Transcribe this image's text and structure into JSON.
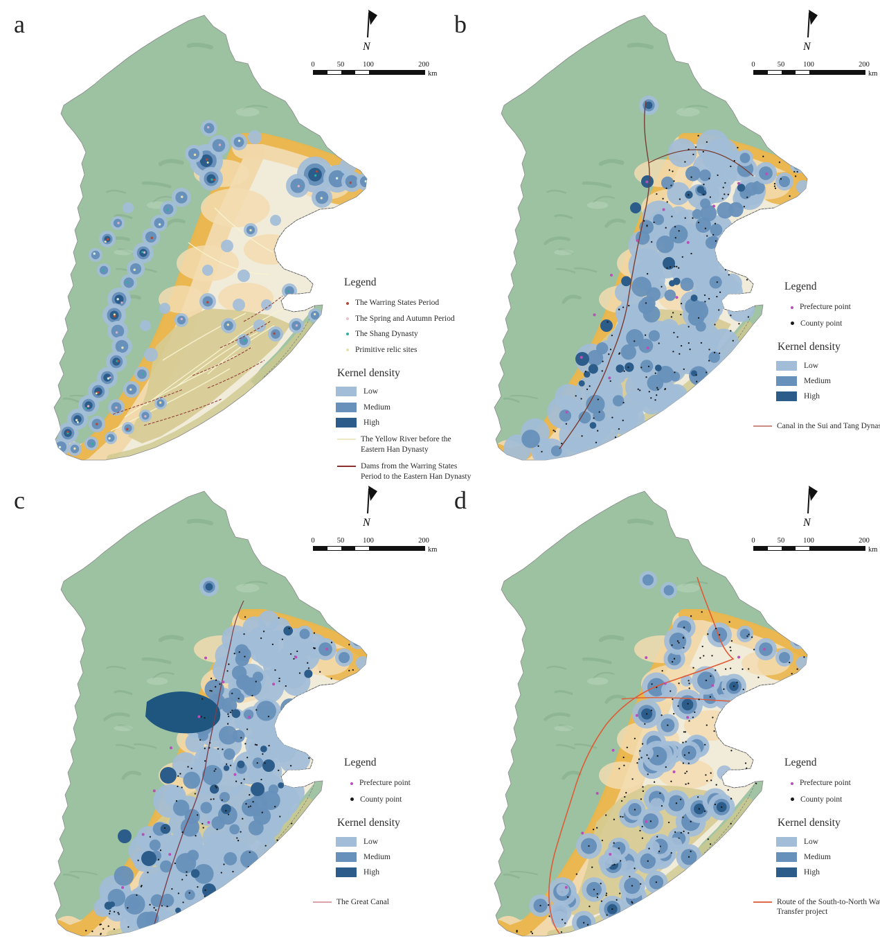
{
  "panels": [
    {
      "label": "a",
      "north_label": "N",
      "scalebar": {
        "labels": [
          "0",
          "50",
          "100",
          "200"
        ],
        "unit": "km"
      },
      "legend": {
        "title": "Legend",
        "point_items": [
          {
            "label": "The Warring States Period",
            "color": "#b0493b"
          },
          {
            "label": "The Spring and Autumn Period",
            "color": "#e7c2ce"
          },
          {
            "label": "The Shang Dynasty",
            "color": "#2fae9e"
          },
          {
            "label": "Primitive relic sites",
            "color": "#eae0ac"
          }
        ],
        "density": {
          "title": "Kernel density",
          "classes": [
            {
              "label": "Low",
              "color": "#a2bdd8"
            },
            {
              "label": "Medium",
              "color": "#6790ba"
            },
            {
              "label": "High",
              "color": "#2b5c8a"
            }
          ]
        },
        "line_items": [
          {
            "label": "The Yellow River before the Eastern Han Dynasty",
            "color": "#efe8c0"
          },
          {
            "label": "Dams from the Warring States Period to the Eastern Han Dynasty",
            "color": "#8a2f2b"
          }
        ]
      }
    },
    {
      "label": "b",
      "north_label": "N",
      "scalebar": {
        "labels": [
          "0",
          "50",
          "100",
          "200"
        ],
        "unit": "km"
      },
      "legend": {
        "title": "Legend",
        "point_items": [
          {
            "label": "Prefecture point",
            "color": "#b94fb9"
          },
          {
            "label": "County point",
            "color": "#1a1a1a"
          }
        ],
        "density": {
          "title": "Kernel density",
          "classes": [
            {
              "label": "Low",
              "color": "#a2bdd8"
            },
            {
              "label": "Medium",
              "color": "#6790ba"
            },
            {
              "label": "High",
              "color": "#2b5c8a"
            }
          ]
        },
        "line_items": [
          {
            "label": "Canal in the Sui and Tang Dynasty",
            "color": "#c98a80"
          }
        ]
      }
    },
    {
      "label": "c",
      "north_label": "N",
      "scalebar": {
        "labels": [
          "0",
          "50",
          "100",
          "200"
        ],
        "unit": "km"
      },
      "legend": {
        "title": "Legend",
        "point_items": [
          {
            "label": "Prefecture point",
            "color": "#b94fb9"
          },
          {
            "label": "County point",
            "color": "#1a1a1a"
          }
        ],
        "density": {
          "title": "Kernel density",
          "classes": [
            {
              "label": "Low",
              "color": "#a2bdd8"
            },
            {
              "label": "Medium",
              "color": "#6790ba"
            },
            {
              "label": "High",
              "color": "#2b5c8a"
            }
          ]
        },
        "line_items": [
          {
            "label": "The Great Canal",
            "color": "#d9a3a8"
          }
        ]
      }
    },
    {
      "label": "d",
      "north_label": "N",
      "scalebar": {
        "labels": [
          "0",
          "50",
          "100",
          "200"
        ],
        "unit": "km"
      },
      "legend": {
        "title": "Legend",
        "point_items": [
          {
            "label": "Prefecture point",
            "color": "#b94fb9"
          },
          {
            "label": "County point",
            "color": "#1a1a1a"
          }
        ],
        "density": {
          "title": "Kernel density",
          "classes": [
            {
              "label": "Low",
              "color": "#a2bdd8"
            },
            {
              "label": "Medium",
              "color": "#6790ba"
            },
            {
              "label": "High",
              "color": "#2b5c8a"
            }
          ]
        },
        "line_items": [
          {
            "label": "Route of the South-to-North Water Transfer project",
            "color": "#de6a4a"
          }
        ]
      }
    }
  ]
}
